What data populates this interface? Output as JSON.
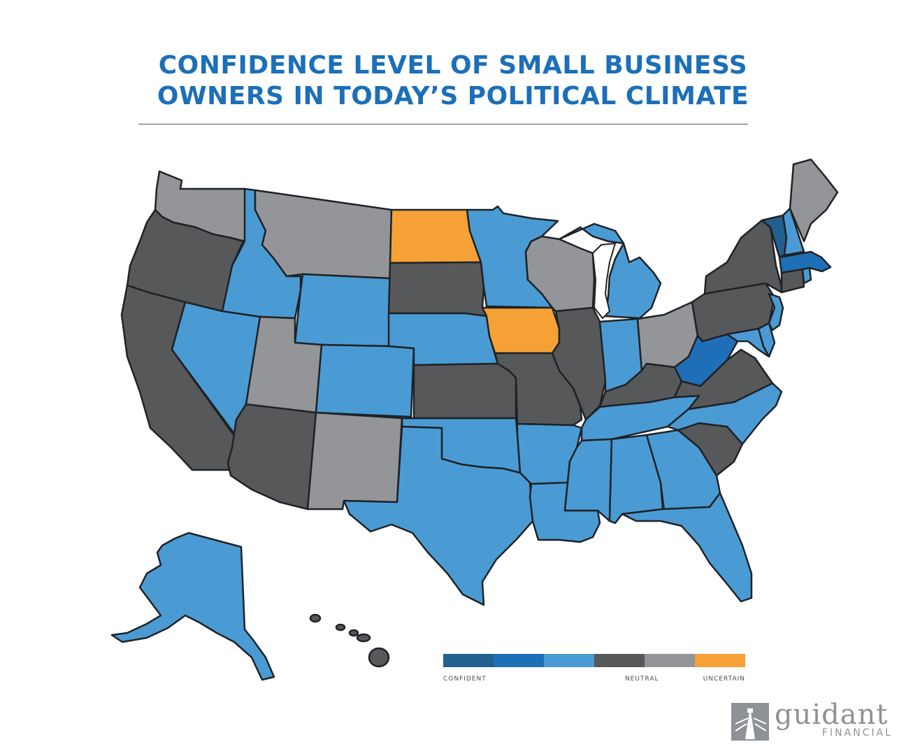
{
  "title": {
    "line1": "CONFIDENCE LEVEL OF SMALL BUSINESS",
    "line2": "OWNERS IN TODAY’S POLITICAL CLIMATE"
  },
  "colors": {
    "confident_dark": "#22608f",
    "confident": "#1f6fb8",
    "leaning_confident": "#4a9bd4",
    "neutral": "#57585a",
    "neutral_light": "#939598",
    "uncertain": "#f6a136",
    "outline": "#1f2226"
  },
  "legend": {
    "swatches": [
      "#22608f",
      "#1f6fb8",
      "#4a9bd4",
      "#57585a",
      "#939598",
      "#f6a136"
    ],
    "labels": {
      "left": "CONFIDENT",
      "middle": "NEUTRAL",
      "right": "UNCERTAIN"
    }
  },
  "states": [
    {
      "name": "Washington",
      "level": "neutral_light"
    },
    {
      "name": "Oregon",
      "level": "neutral"
    },
    {
      "name": "California",
      "level": "neutral"
    },
    {
      "name": "Idaho",
      "level": "leaning_confident"
    },
    {
      "name": "Nevada",
      "level": "leaning_confident"
    },
    {
      "name": "Montana",
      "level": "neutral_light"
    },
    {
      "name": "Wyoming",
      "level": "leaning_confident"
    },
    {
      "name": "Utah",
      "level": "neutral_light"
    },
    {
      "name": "Arizona",
      "level": "neutral"
    },
    {
      "name": "Colorado",
      "level": "leaning_confident"
    },
    {
      "name": "New Mexico",
      "level": "neutral_light"
    },
    {
      "name": "North Dakota",
      "level": "uncertain"
    },
    {
      "name": "South Dakota",
      "level": "neutral"
    },
    {
      "name": "Nebraska",
      "level": "leaning_confident"
    },
    {
      "name": "Kansas",
      "level": "neutral"
    },
    {
      "name": "Oklahoma",
      "level": "leaning_confident"
    },
    {
      "name": "Texas",
      "level": "leaning_confident"
    },
    {
      "name": "Minnesota",
      "level": "leaning_confident"
    },
    {
      "name": "Iowa",
      "level": "uncertain"
    },
    {
      "name": "Missouri",
      "level": "neutral"
    },
    {
      "name": "Arkansas",
      "level": "leaning_confident"
    },
    {
      "name": "Louisiana",
      "level": "leaning_confident"
    },
    {
      "name": "Wisconsin",
      "level": "neutral_light"
    },
    {
      "name": "Illinois",
      "level": "neutral"
    },
    {
      "name": "Michigan",
      "level": "leaning_confident"
    },
    {
      "name": "Indiana",
      "level": "leaning_confident"
    },
    {
      "name": "Ohio",
      "level": "neutral_light"
    },
    {
      "name": "Kentucky",
      "level": "neutral"
    },
    {
      "name": "Tennessee",
      "level": "leaning_confident"
    },
    {
      "name": "Mississippi",
      "level": "leaning_confident"
    },
    {
      "name": "Alabama",
      "level": "leaning_confident"
    },
    {
      "name": "Georgia",
      "level": "leaning_confident"
    },
    {
      "name": "Florida",
      "level": "leaning_confident"
    },
    {
      "name": "South Carolina",
      "level": "neutral"
    },
    {
      "name": "North Carolina",
      "level": "leaning_confident"
    },
    {
      "name": "Virginia",
      "level": "neutral"
    },
    {
      "name": "West Virginia",
      "level": "confident"
    },
    {
      "name": "Pennsylvania",
      "level": "neutral"
    },
    {
      "name": "New York",
      "level": "neutral"
    },
    {
      "name": "Maryland",
      "level": "leaning_confident"
    },
    {
      "name": "Delaware",
      "level": "leaning_confident"
    },
    {
      "name": "New Jersey",
      "level": "leaning_confident"
    },
    {
      "name": "Connecticut",
      "level": "neutral"
    },
    {
      "name": "Rhode Island",
      "level": "leaning_confident"
    },
    {
      "name": "Massachusetts",
      "level": "confident"
    },
    {
      "name": "Vermont",
      "level": "confident_dark"
    },
    {
      "name": "New Hampshire",
      "level": "leaning_confident"
    },
    {
      "name": "Maine",
      "level": "neutral_light"
    },
    {
      "name": "Alaska",
      "level": "leaning_confident"
    },
    {
      "name": "Hawaii",
      "level": "neutral"
    }
  ],
  "logo": {
    "name": "guidant",
    "sub": "FINANCIAL"
  }
}
